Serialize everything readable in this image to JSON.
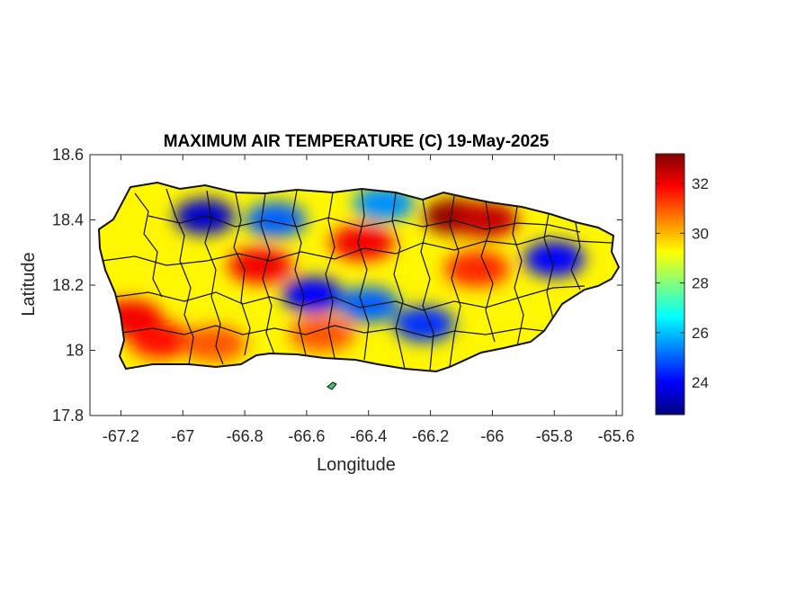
{
  "figure": {
    "title": "MAXIMUM AIR TEMPERATURE (C) 19-May-2025",
    "xlabel": "Longitude",
    "ylabel": "Latitude"
  },
  "chart_data": {
    "type": "heatmap",
    "title": "MAXIMUM AIR TEMPERATURE (C) 19-May-2025",
    "xlabel": "Longitude",
    "ylabel": "Latitude",
    "xlim": [
      -67.3,
      -65.58
    ],
    "ylim": [
      17.8,
      18.6
    ],
    "x_ticks": [
      -67.2,
      -67,
      -66.8,
      -66.6,
      -66.4,
      -66.2,
      -66,
      -65.8,
      -65.6
    ],
    "x_tick_labels": [
      "-67.2",
      "-67",
      "-66.8",
      "-66.6",
      "-66.4",
      "-66.2",
      "-66",
      "-65.8",
      "-65.6"
    ],
    "y_ticks": [
      17.8,
      18,
      18.2,
      18.4,
      18.6
    ],
    "y_tick_labels": [
      "17.8",
      "18",
      "18.2",
      "18.4",
      "18.6"
    ],
    "colorbar": {
      "colormap": "jet",
      "clim": [
        22.7,
        33.2
      ],
      "ticks": [
        24,
        26,
        28,
        30,
        32
      ],
      "tick_labels": [
        "24",
        "26",
        "28",
        "30",
        "32"
      ]
    },
    "hotspots": [
      {
        "lon": -66.12,
        "lat": 18.41,
        "temp": 33.0
      },
      {
        "lon": -66.02,
        "lat": 18.4,
        "temp": 32.5
      },
      {
        "lon": -67.17,
        "lat": 18.1,
        "temp": 32.0
      },
      {
        "lon": -67.07,
        "lat": 18.03,
        "temp": 31.8
      },
      {
        "lon": -66.42,
        "lat": 18.33,
        "temp": 32.0
      },
      {
        "lon": -66.75,
        "lat": 18.26,
        "temp": 32.0
      },
      {
        "lon": -66.05,
        "lat": 18.25,
        "temp": 31.5
      },
      {
        "lon": -66.9,
        "lat": 18.02,
        "temp": 31.0
      },
      {
        "lon": -66.55,
        "lat": 18.05,
        "temp": 31.0
      }
    ],
    "coldspots": [
      {
        "lon": -66.93,
        "lat": 18.41,
        "temp": 23.5
      },
      {
        "lon": -66.58,
        "lat": 18.17,
        "temp": 24.0
      },
      {
        "lon": -65.8,
        "lat": 18.28,
        "temp": 24.0
      },
      {
        "lon": -66.7,
        "lat": 18.4,
        "temp": 25.0
      },
      {
        "lon": -66.22,
        "lat": 18.08,
        "temp": 24.5
      },
      {
        "lon": -66.4,
        "lat": 18.14,
        "temp": 25.0
      },
      {
        "lon": -66.35,
        "lat": 18.45,
        "temp": 25.5
      }
    ]
  }
}
